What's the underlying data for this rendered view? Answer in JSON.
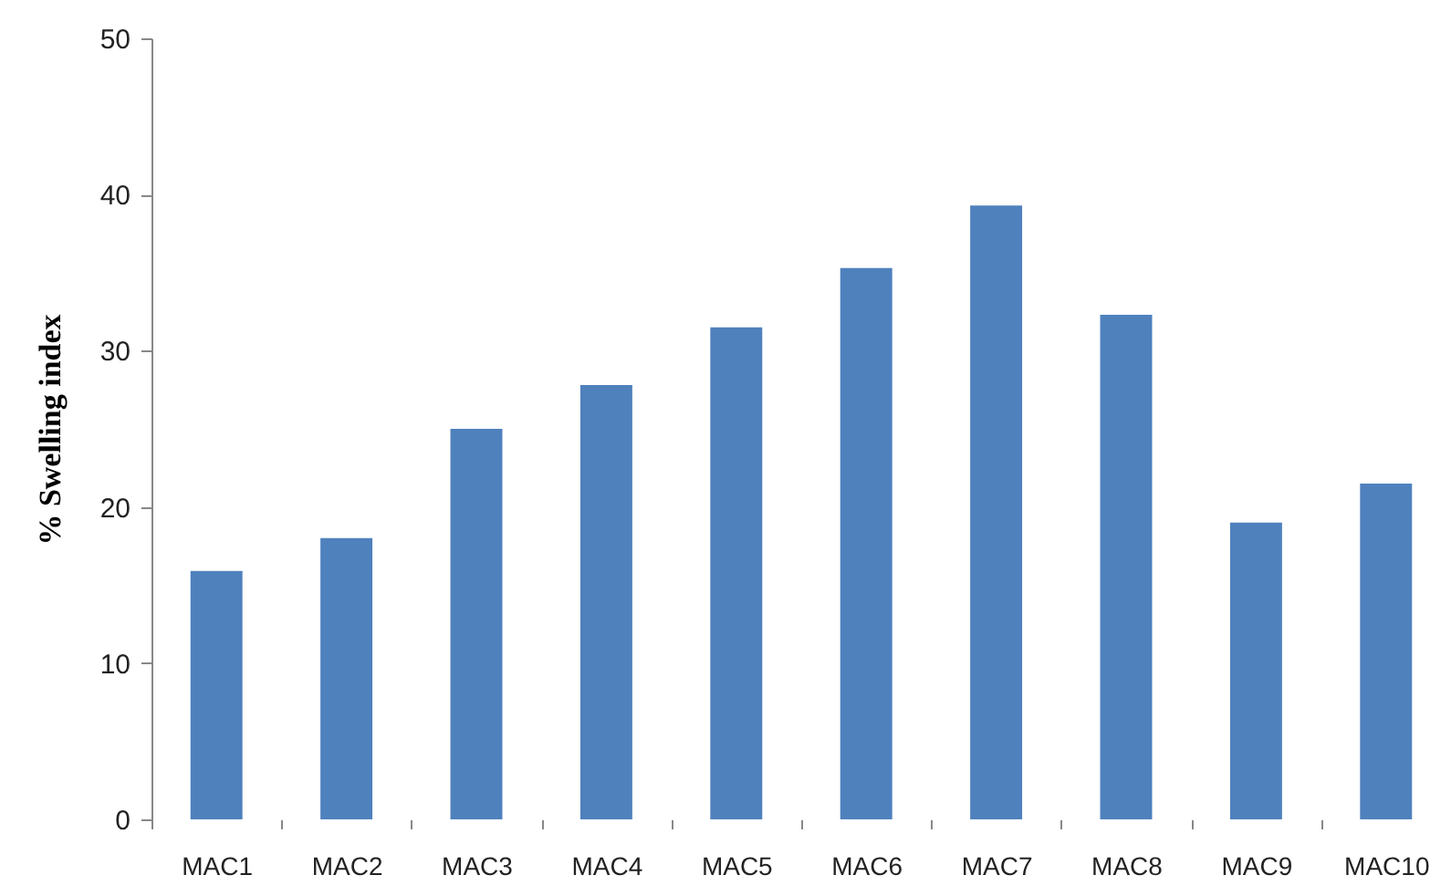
{
  "chart_data": {
    "type": "bar",
    "ylabel": "% Swelling index",
    "categories": [
      "MAC1",
      "MAC2",
      "MAC3",
      "MAC4",
      "MAC5",
      "MAC6",
      "MAC7",
      "MAC8",
      "MAC9",
      "MAC10"
    ],
    "values": [
      15.9,
      18.0,
      25.0,
      27.8,
      31.5,
      35.3,
      39.3,
      32.3,
      19.0,
      21.5
    ],
    "color": "#4f81bd",
    "ylim": [
      0,
      50
    ],
    "yticks": [
      0,
      10,
      20,
      30,
      40,
      50
    ],
    "grid": false
  }
}
